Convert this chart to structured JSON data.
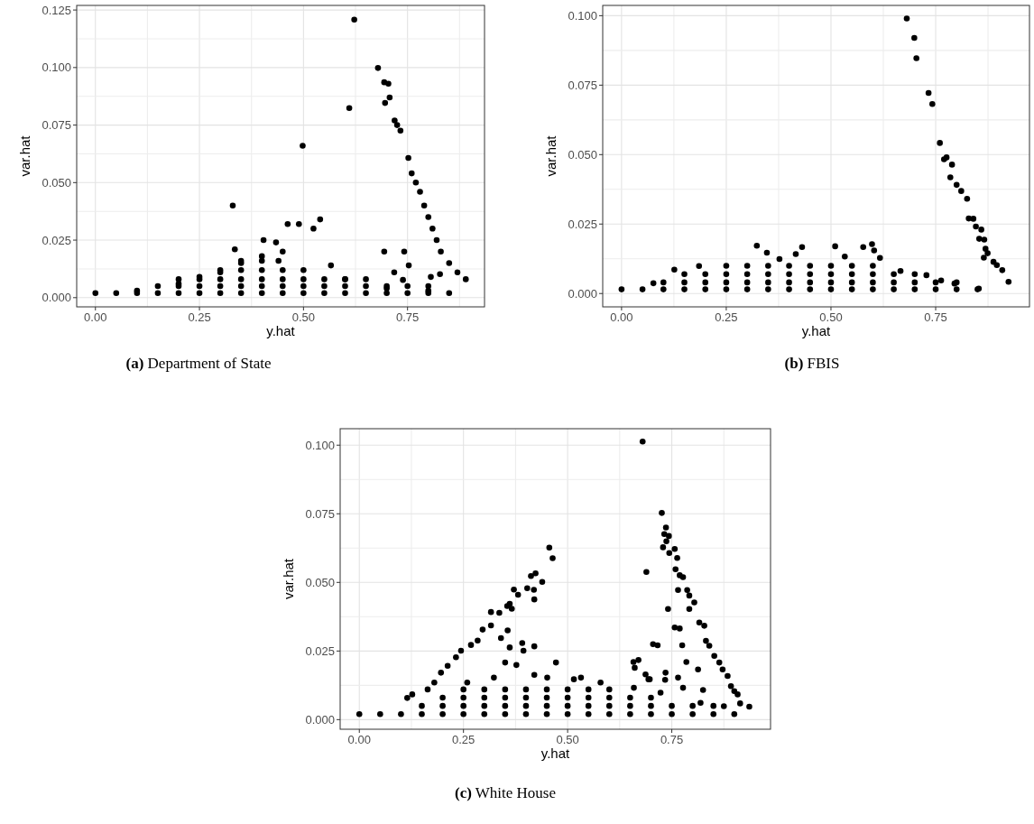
{
  "chart_data": [
    {
      "type": "scatter",
      "title": "(a) Department of State",
      "xlabel": "y.hat",
      "ylabel": "var.hat",
      "color": "#000000",
      "marker": "circle",
      "grid": true,
      "xlim": [
        -0.045,
        0.935
      ],
      "xticks": [
        {
          "value": 0,
          "label": "0.00"
        },
        {
          "value": 0.125,
          "label": null
        },
        {
          "value": 0.25,
          "label": "0.25"
        },
        {
          "value": 0.375,
          "label": null
        },
        {
          "value": 0.5,
          "label": "0.50"
        },
        {
          "value": 0.625,
          "label": null
        },
        {
          "value": 0.75,
          "label": "0.75"
        },
        {
          "value": 0.875,
          "label": null
        }
      ],
      "ylim": [
        -0.004,
        0.127
      ],
      "yticks": [
        {
          "value": 0,
          "label": "0.000"
        },
        {
          "value": 0.0125,
          "label": null
        },
        {
          "value": 0.025,
          "label": "0.025"
        },
        {
          "value": 0.0375,
          "label": null
        },
        {
          "value": 0.05,
          "label": "0.050"
        },
        {
          "value": 0.0625,
          "label": null
        },
        {
          "value": 0.075,
          "label": "0.075"
        },
        {
          "value": 0.0875,
          "label": null
        },
        {
          "value": 0.1,
          "label": "0.100"
        },
        {
          "value": 0.1125,
          "label": null
        },
        {
          "value": 0.125,
          "label": "0.125"
        }
      ],
      "x": [
        0.622,
        0.679,
        0.694,
        0.704,
        0.707,
        0.696,
        0.61,
        0.719,
        0.725,
        0.733,
        0.498,
        0.33,
        0.462,
        0.489,
        0.54,
        0.524,
        0.404,
        0.434,
        0.335,
        0.694,
        0.742,
        0.566,
        0.753,
        0.718,
        0.828,
        0.806,
        0.739,
        0.752,
        0.76,
        0.77,
        0.78,
        0.79,
        0.8,
        0.81,
        0.82,
        0.83,
        0.85,
        0.87,
        0.89,
        0.1,
        0.2,
        0.25,
        0.3,
        0.35,
        0.4,
        0.45,
        0.5,
        0.6,
        0.7,
        0.8,
        0,
        0.05,
        0.1,
        0.15,
        0.2,
        0.25,
        0.3,
        0.35,
        0.4,
        0.45,
        0.5,
        0.55,
        0.6,
        0.65,
        0.7,
        0.75,
        0.8,
        0.85,
        0.15,
        0.2,
        0.25,
        0.3,
        0.35,
        0.4,
        0.45,
        0.5,
        0.55,
        0.6,
        0.65,
        0.7,
        0.75,
        0.8,
        0.2,
        0.25,
        0.3,
        0.35,
        0.4,
        0.45,
        0.5,
        0.55,
        0.6,
        0.65,
        0.3,
        0.35,
        0.4,
        0.45,
        0.35,
        0.4,
        0.44
      ],
      "values": [
        0.1208,
        0.0998,
        0.0936,
        0.093,
        0.087,
        0.0846,
        0.0824,
        0.077,
        0.075,
        0.0726,
        0.066,
        0.04,
        0.032,
        0.032,
        0.034,
        0.03,
        0.025,
        0.024,
        0.021,
        0.02,
        0.02,
        0.014,
        0.014,
        0.011,
        0.0102,
        0.009,
        0.0077,
        0.0607,
        0.054,
        0.05,
        0.046,
        0.04,
        0.035,
        0.03,
        0.025,
        0.02,
        0.015,
        0.011,
        0.008,
        0.003,
        0.006,
        0.009,
        0.011,
        0.015,
        0.018,
        0.02,
        0.012,
        0.008,
        0.004,
        0.003,
        0.002,
        0.002,
        0.002,
        0.002,
        0.002,
        0.002,
        0.002,
        0.002,
        0.002,
        0.002,
        0.002,
        0.002,
        0.002,
        0.002,
        0.002,
        0.002,
        0.002,
        0.002,
        0.005,
        0.005,
        0.005,
        0.005,
        0.005,
        0.005,
        0.005,
        0.005,
        0.005,
        0.005,
        0.005,
        0.005,
        0.005,
        0.005,
        0.008,
        0.008,
        0.008,
        0.008,
        0.008,
        0.008,
        0.008,
        0.008,
        0.008,
        0.008,
        0.012,
        0.012,
        0.012,
        0.012,
        0.016,
        0.016,
        0.016
      ]
    },
    {
      "type": "scatter",
      "title": "(b) FBIS",
      "xlabel": "y.hat",
      "ylabel": "var.hat",
      "color": "#000000",
      "marker": "circle",
      "grid": true,
      "xlim": [
        -0.045,
        0.974
      ],
      "xticks": [
        {
          "value": 0,
          "label": "0.00"
        },
        {
          "value": 0.125,
          "label": null
        },
        {
          "value": 0.25,
          "label": "0.25"
        },
        {
          "value": 0.375,
          "label": null
        },
        {
          "value": 0.5,
          "label": "0.50"
        },
        {
          "value": 0.625,
          "label": null
        },
        {
          "value": 0.75,
          "label": "0.75"
        },
        {
          "value": 0.875,
          "label": null
        }
      ],
      "ylim": [
        -0.0048,
        0.1037
      ],
      "yticks": [
        {
          "value": 0,
          "label": "0.000"
        },
        {
          "value": 0.0125,
          "label": null
        },
        {
          "value": 0.025,
          "label": "0.025"
        },
        {
          "value": 0.0375,
          "label": null
        },
        {
          "value": 0.05,
          "label": "0.050"
        },
        {
          "value": 0.0625,
          "label": null
        },
        {
          "value": 0.075,
          "label": "0.075"
        },
        {
          "value": 0.0875,
          "label": null
        },
        {
          "value": 0.1,
          "label": "0.100"
        }
      ],
      "x": [
        0.681,
        0.699,
        0.704,
        0.733,
        0.742,
        0.76,
        0.77,
        0.776,
        0.789,
        0.785,
        0.8,
        0.811,
        0.825,
        0.829,
        0.84,
        0.846,
        0.859,
        0.854,
        0.866,
        0.869,
        0.874,
        0.865,
        0.888,
        0.896,
        0.909,
        0.924,
        0.853,
        0.323,
        0.431,
        0.416,
        0.51,
        0.577,
        0.598,
        0.603,
        0.617,
        0.347,
        0.377,
        0.533,
        0.185,
        0.126,
        0.076,
        0.666,
        0.728,
        0.763,
        0.795,
        0,
        0.05,
        0.1,
        0.15,
        0.2,
        0.25,
        0.3,
        0.35,
        0.4,
        0.45,
        0.5,
        0.55,
        0.6,
        0.65,
        0.7,
        0.75,
        0.8,
        0.85,
        0.1,
        0.15,
        0.2,
        0.25,
        0.3,
        0.35,
        0.4,
        0.45,
        0.5,
        0.55,
        0.6,
        0.65,
        0.7,
        0.75,
        0.8,
        0.15,
        0.2,
        0.25,
        0.3,
        0.35,
        0.4,
        0.45,
        0.5,
        0.55,
        0.6,
        0.65,
        0.7,
        0.25,
        0.3,
        0.35,
        0.4,
        0.45,
        0.5,
        0.55,
        0.6
      ],
      "values": [
        0.099,
        0.092,
        0.0847,
        0.0722,
        0.0682,
        0.0542,
        0.0483,
        0.049,
        0.0464,
        0.0418,
        0.0391,
        0.0369,
        0.0341,
        0.027,
        0.0269,
        0.0241,
        0.023,
        0.0197,
        0.0194,
        0.0161,
        0.0145,
        0.0129,
        0.0114,
        0.0102,
        0.0084,
        0.0042,
        0.0018,
        0.0172,
        0.0167,
        0.0142,
        0.017,
        0.0167,
        0.0178,
        0.0155,
        0.0128,
        0.0147,
        0.0124,
        0.0133,
        0.0099,
        0.0086,
        0.0037,
        0.0081,
        0.0066,
        0.0047,
        0.0036,
        0.0015,
        0.0015,
        0.0015,
        0.0015,
        0.0015,
        0.0015,
        0.0015,
        0.0015,
        0.0015,
        0.0015,
        0.0015,
        0.0015,
        0.0015,
        0.0015,
        0.0015,
        0.0015,
        0.0015,
        0.0015,
        0.004,
        0.004,
        0.004,
        0.004,
        0.004,
        0.004,
        0.004,
        0.004,
        0.004,
        0.004,
        0.004,
        0.004,
        0.004,
        0.004,
        0.004,
        0.007,
        0.007,
        0.007,
        0.007,
        0.007,
        0.007,
        0.007,
        0.007,
        0.007,
        0.007,
        0.007,
        0.007,
        0.01,
        0.01,
        0.01,
        0.01,
        0.01,
        0.01,
        0.01,
        0.01
      ]
    },
    {
      "type": "scatter",
      "title": "(c) White House",
      "xlabel": "y.hat",
      "ylabel": "var.hat",
      "color": "#000000",
      "marker": "circle",
      "grid": true,
      "xlim": [
        -0.046,
        0.987
      ],
      "xticks": [
        {
          "value": 0,
          "label": "0.00"
        },
        {
          "value": 0.125,
          "label": null
        },
        {
          "value": 0.25,
          "label": "0.25"
        },
        {
          "value": 0.375,
          "label": null
        },
        {
          "value": 0.5,
          "label": "0.50"
        },
        {
          "value": 0.625,
          "label": null
        },
        {
          "value": 0.75,
          "label": "0.75"
        },
        {
          "value": 0.875,
          "label": null
        }
      ],
      "ylim": [
        -0.0035,
        0.106
      ],
      "yticks": [
        {
          "value": 0,
          "label": "0.000"
        },
        {
          "value": 0.0125,
          "label": null
        },
        {
          "value": 0.025,
          "label": "0.025"
        },
        {
          "value": 0.0375,
          "label": null
        },
        {
          "value": 0.05,
          "label": "0.050"
        },
        {
          "value": 0.0625,
          "label": null
        },
        {
          "value": 0.075,
          "label": "0.075"
        },
        {
          "value": 0.0875,
          "label": null
        },
        {
          "value": 0.1,
          "label": "0.100"
        }
      ],
      "x": [
        0.68,
        0.726,
        0.736,
        0.732,
        0.743,
        0.737,
        0.729,
        0.757,
        0.744,
        0.763,
        0.759,
        0.689,
        0.769,
        0.777,
        0.765,
        0.787,
        0.792,
        0.804,
        0.792,
        0.816,
        0.828,
        0.832,
        0.84,
        0.852,
        0.864,
        0.872,
        0.884,
        0.892,
        0.9,
        0.908,
        0.914,
        0.936,
        0.741,
        0.757,
        0.769,
        0.705,
        0.716,
        0.775,
        0.785,
        0.813,
        0.735,
        0.765,
        0.67,
        0.694,
        0.777,
        0.825,
        0.734,
        0.456,
        0.464,
        0.423,
        0.412,
        0.439,
        0.371,
        0.403,
        0.419,
        0.381,
        0.42,
        0.361,
        0.355,
        0.366,
        0.316,
        0.336,
        0.356,
        0.296,
        0.316,
        0.34,
        0.284,
        0.268,
        0.244,
        0.232,
        0.212,
        0.196,
        0.18,
        0.164,
        0.127,
        0.115,
        0.391,
        0.42,
        0.394,
        0.361,
        0.472,
        0.377,
        0.35,
        0.658,
        0.661,
        0.687,
        0.697,
        0.532,
        0.451,
        0.42,
        0.259,
        0.323,
        0.515,
        0.579,
        0.659,
        0.723,
        0.819,
        0.875,
        0,
        0.05,
        0.1,
        0.15,
        0.2,
        0.25,
        0.3,
        0.35,
        0.4,
        0.45,
        0.5,
        0.55,
        0.6,
        0.65,
        0.7,
        0.75,
        0.8,
        0.85,
        0.9,
        0.15,
        0.2,
        0.25,
        0.3,
        0.35,
        0.4,
        0.45,
        0.5,
        0.55,
        0.6,
        0.65,
        0.7,
        0.75,
        0.8,
        0.85,
        0.2,
        0.25,
        0.3,
        0.35,
        0.4,
        0.45,
        0.5,
        0.55,
        0.6,
        0.65,
        0.7,
        0.25,
        0.3,
        0.35,
        0.4,
        0.45,
        0.5,
        0.55,
        0.6
      ],
      "values": [
        0.1013,
        0.0753,
        0.07,
        0.0676,
        0.0669,
        0.065,
        0.0628,
        0.0622,
        0.0607,
        0.0589,
        0.0548,
        0.0538,
        0.0526,
        0.0519,
        0.0472,
        0.0472,
        0.0452,
        0.0427,
        0.0403,
        0.0354,
        0.0342,
        0.0287,
        0.0269,
        0.0232,
        0.0208,
        0.0183,
        0.0159,
        0.0122,
        0.0104,
        0.0092,
        0.0059,
        0.0047,
        0.0403,
        0.0336,
        0.0332,
        0.0275,
        0.0271,
        0.0271,
        0.021,
        0.0183,
        0.0171,
        0.0153,
        0.0217,
        0.0147,
        0.0116,
        0.0108,
        0.0145,
        0.0627,
        0.0588,
        0.0533,
        0.0523,
        0.0502,
        0.0474,
        0.0479,
        0.0473,
        0.0455,
        0.0438,
        0.0422,
        0.0414,
        0.0404,
        0.0392,
        0.0389,
        0.0325,
        0.0328,
        0.0343,
        0.0297,
        0.0288,
        0.0272,
        0.0251,
        0.0227,
        0.0196,
        0.0171,
        0.0135,
        0.011,
        0.0092,
        0.0079,
        0.0279,
        0.0267,
        0.0251,
        0.0263,
        0.0208,
        0.0199,
        0.0208,
        0.021,
        0.0189,
        0.0165,
        0.0147,
        0.0153,
        0.0153,
        0.0163,
        0.0135,
        0.0153,
        0.0147,
        0.0135,
        0.0116,
        0.0098,
        0.0061,
        0.0049,
        0.002,
        0.002,
        0.002,
        0.002,
        0.002,
        0.002,
        0.002,
        0.002,
        0.002,
        0.002,
        0.002,
        0.002,
        0.002,
        0.002,
        0.002,
        0.002,
        0.002,
        0.002,
        0.002,
        0.005,
        0.005,
        0.005,
        0.005,
        0.005,
        0.005,
        0.005,
        0.005,
        0.005,
        0.005,
        0.005,
        0.005,
        0.005,
        0.005,
        0.005,
        0.008,
        0.008,
        0.008,
        0.008,
        0.008,
        0.008,
        0.008,
        0.008,
        0.008,
        0.008,
        0.008,
        0.011,
        0.011,
        0.011,
        0.011,
        0.011,
        0.011,
        0.011,
        0.011
      ]
    }
  ]
}
